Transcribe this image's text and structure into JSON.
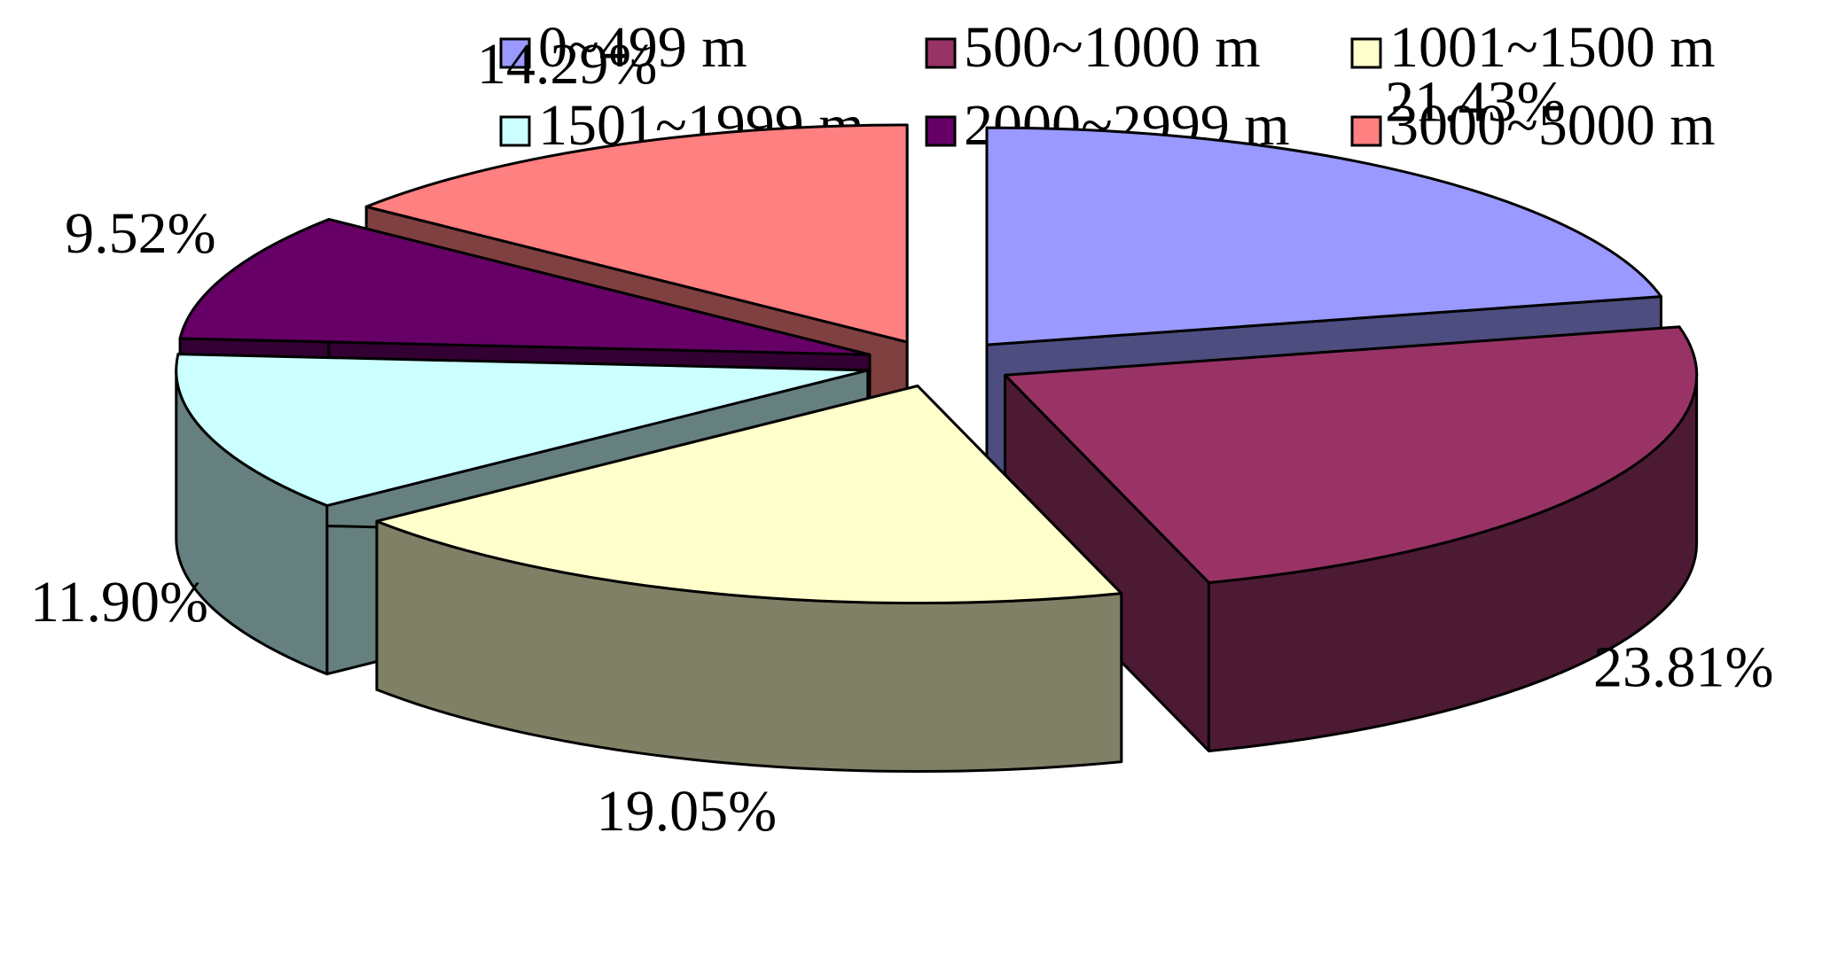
{
  "chart_data": {
    "type": "pie",
    "style": "3d-exploded",
    "legend_placement": "top",
    "series": [
      {
        "label": "0~499 m",
        "value": 21.43,
        "value_label": "21.43%",
        "top_color": "#9999ff",
        "side_color": "#4d4d80"
      },
      {
        "label": "500~1000 m",
        "value": 23.81,
        "value_label": "23.81%",
        "top_color": "#993366",
        "side_color": "#4d1a33"
      },
      {
        "label": "1001~1500 m",
        "value": 19.05,
        "value_label": "19.05%",
        "top_color": "#ffffcc",
        "side_color": "#808066"
      },
      {
        "label": "1501~1999 m",
        "value": 11.9,
        "value_label": "11.90%",
        "top_color": "#ccffff",
        "side_color": "#668080"
      },
      {
        "label": "2000~2999 m",
        "value": 9.52,
        "value_label": "9.52%",
        "top_color": "#660066",
        "side_color": "#330033"
      },
      {
        "label": "3000~5000 m",
        "value": 14.29,
        "value_label": "14.29%",
        "top_color": "#ff8080",
        "side_color": "#804040"
      }
    ]
  }
}
